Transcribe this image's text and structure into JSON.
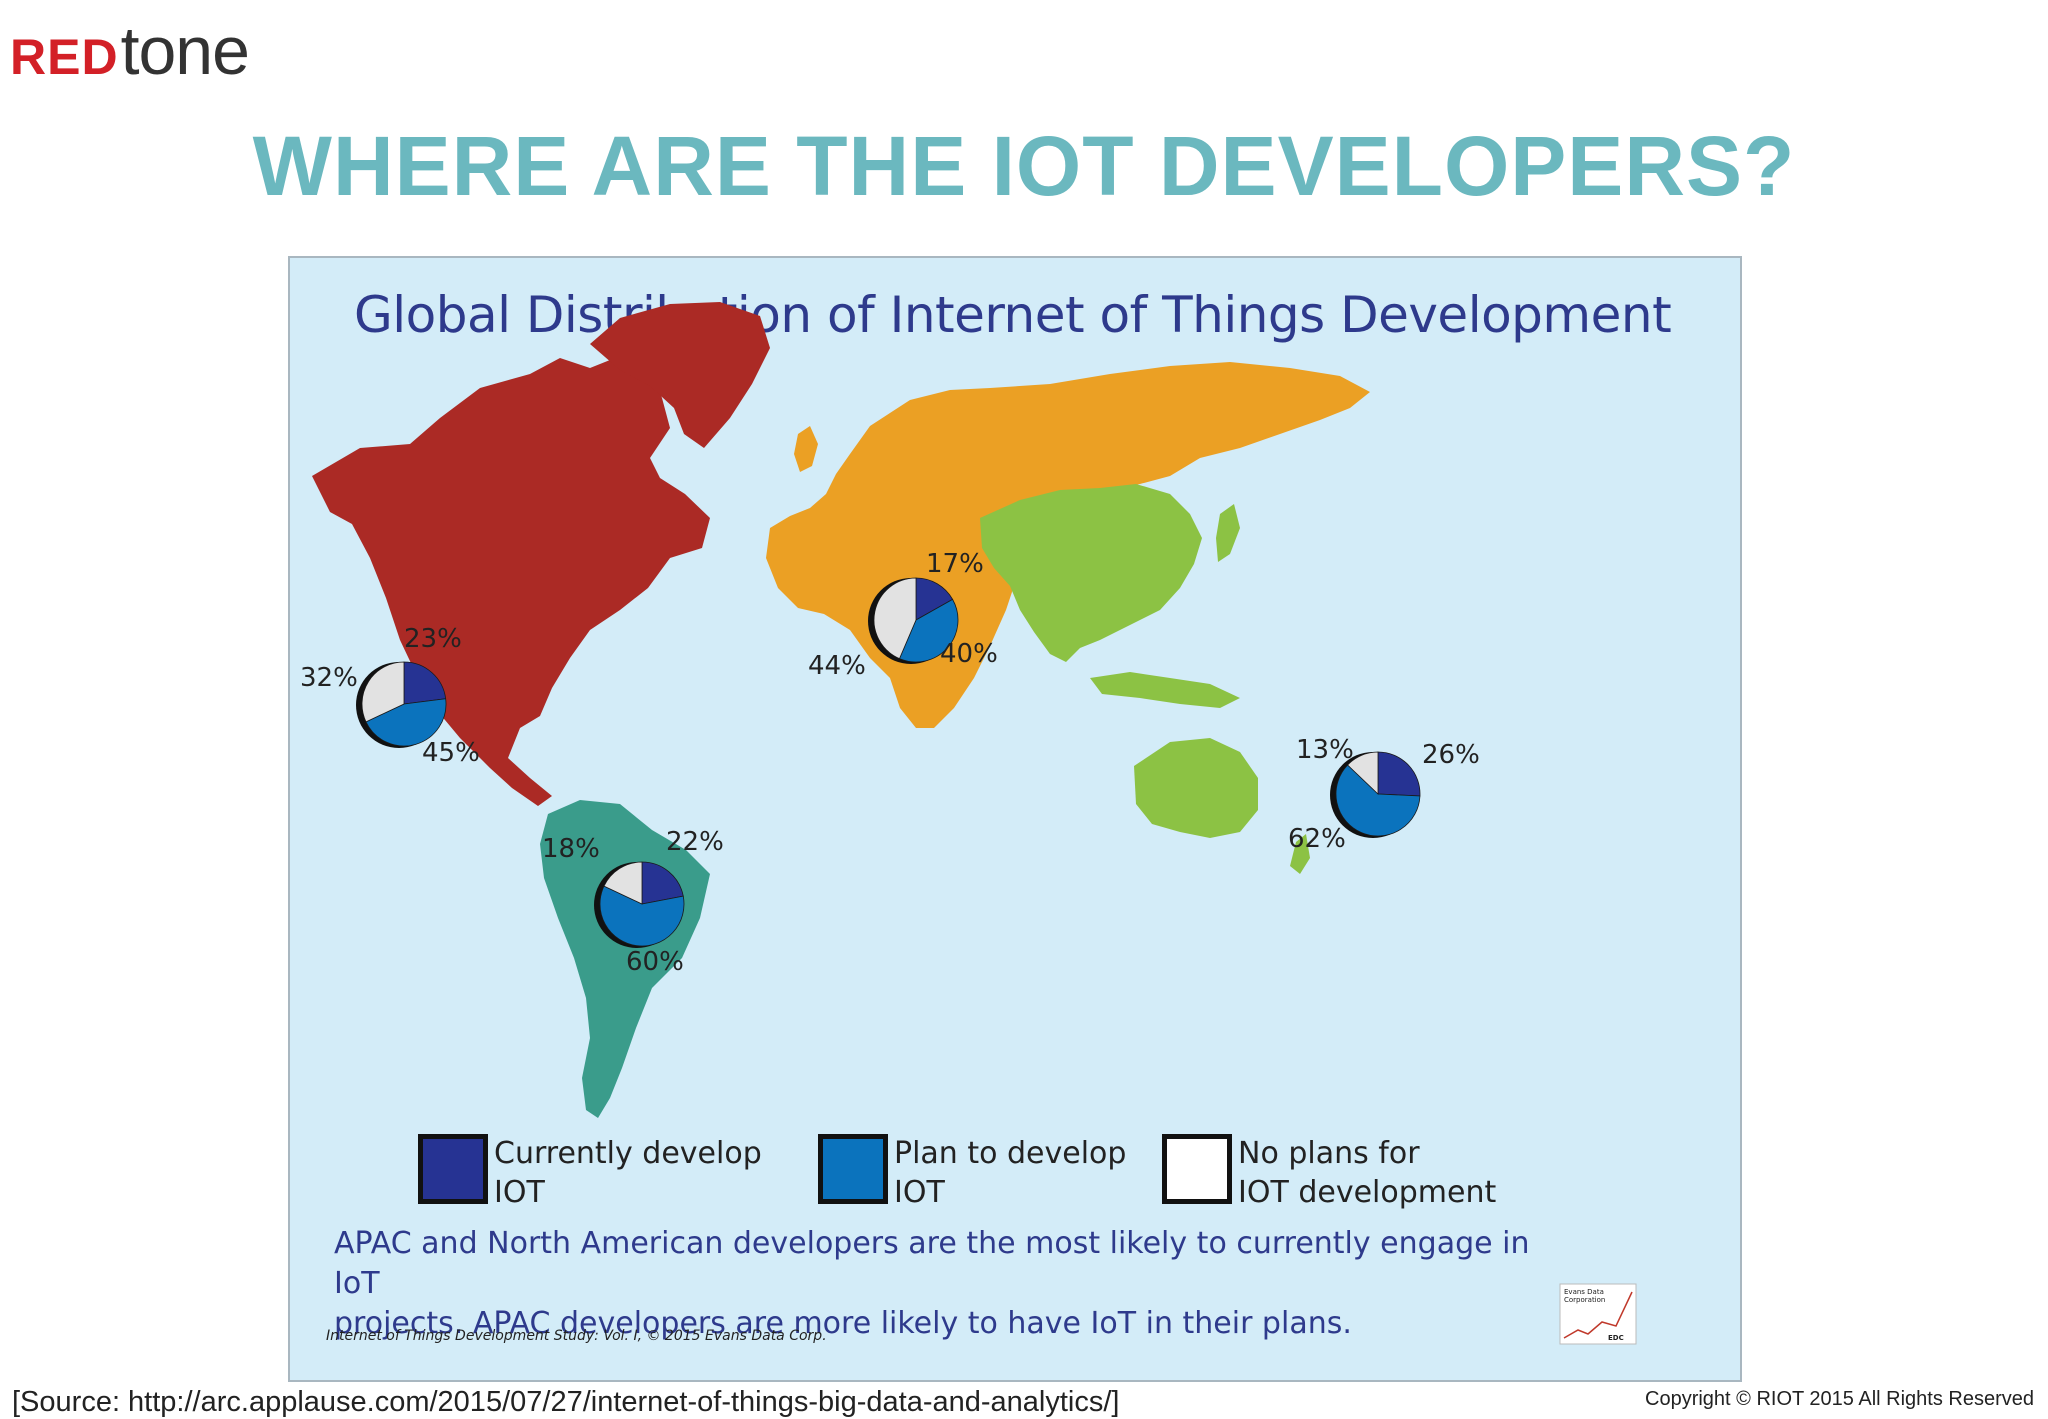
{
  "logo": {
    "red_part": "RED",
    "rest_part": "tone"
  },
  "headline": "WHERE ARE THE IOT DEVELOPERS?",
  "map": {
    "title": "Global Distribution of Internet of Things Development",
    "region_colors": {
      "north_america": "#ab2a25",
      "south_america": "#3a9c8b",
      "emea": "#eba024",
      "apac": "#8cc244",
      "ocean": "#d3ecf8"
    },
    "legend": [
      {
        "line1": "Currently develop",
        "line2": "IOT",
        "color": "#263393"
      },
      {
        "line1": "Plan to develop",
        "line2": "IOT",
        "color": "#0b73bd"
      },
      {
        "line1": "No plans for",
        "line2": "IOT development",
        "color": "#ffffff"
      }
    ],
    "caption_line1": "APAC and North American developers are the most likely to currently engage in IoT",
    "caption_line2": "projects.  APAC developers are more likely to have IoT in their plans.",
    "study_note": "Internet of Things Development Study: Vol. I, © 2015 Evans Data Corp.",
    "publisher_logo": {
      "line1": "Evans Data",
      "line2": "Corporation",
      "mark": "EDC"
    }
  },
  "chart_data": {
    "type": "pie",
    "categories": [
      "Currently develop IOT",
      "Plan to develop IOT",
      "No plans for IOT development"
    ],
    "series": [
      {
        "name": "North America",
        "values": [
          23,
          45,
          32
        ],
        "labels": [
          "23%",
          "45%",
          "32%"
        ]
      },
      {
        "name": "South America",
        "values": [
          22,
          60,
          18
        ],
        "labels": [
          "22%",
          "60%",
          "18%"
        ]
      },
      {
        "name": "EMEA",
        "values": [
          17,
          40,
          44
        ],
        "labels": [
          "17%",
          "40%",
          "44%"
        ]
      },
      {
        "name": "APAC",
        "values": [
          26,
          62,
          13
        ],
        "labels": [
          "26%",
          "62%",
          "13%"
        ]
      }
    ],
    "colors": [
      "#263393",
      "#0b73bd",
      "#e2e2e2"
    ]
  },
  "footer": {
    "source": "[Source: http://arc.applause.com/2015/07/27/internet-of-things-big-data-and-analytics/]",
    "copyright": "Copyright © RIOT 2015 All Rights Reserved"
  }
}
